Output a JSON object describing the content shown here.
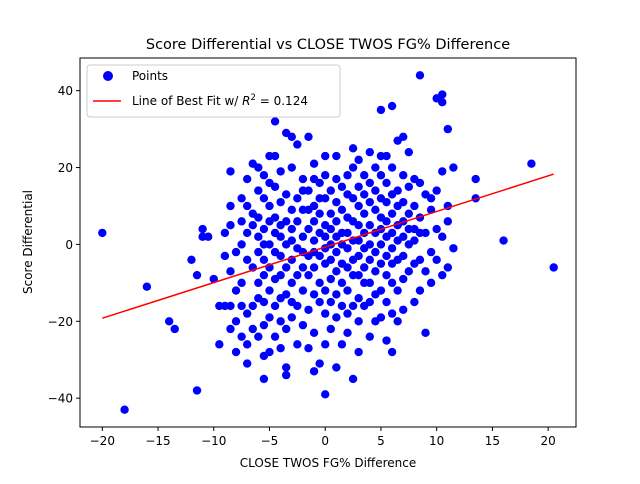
{
  "chart_data": {
    "type": "scatter",
    "title": "Score Differential vs CLOSE TWOS FG% Difference",
    "xlabel": "CLOSE TWOS FG% Difference",
    "ylabel": "Score Differential",
    "xlim": [
      -22.0,
      22.5
    ],
    "ylim": [
      -47.5,
      48.5
    ],
    "xticks": [
      -20,
      -15,
      -10,
      -5,
      0,
      5,
      10,
      15,
      20
    ],
    "yticks": [
      -40,
      -20,
      0,
      20,
      40
    ],
    "grid": false,
    "legend_position": "top-left",
    "legend": {
      "points_label": "Points",
      "fit_label_prefix": "Line of Best Fit w/ ",
      "fit_label_r2": "R",
      "fit_label_suffix": " = 0.124"
    },
    "fit_line": {
      "x": [
        -20,
        20.5
      ],
      "y": [
        -19.2,
        18.3
      ],
      "color": "#ff0000",
      "r_squared": 0.124
    },
    "point_color": "#0000ff",
    "series": [
      {
        "name": "Points",
        "points": [
          [
            -20,
            3
          ],
          [
            -18,
            -43
          ],
          [
            -16,
            -11
          ],
          [
            -14,
            -20
          ],
          [
            -13.5,
            -22
          ],
          [
            -12,
            -4
          ],
          [
            -11.5,
            -38
          ],
          [
            -11.5,
            -8
          ],
          [
            -11,
            2
          ],
          [
            -11,
            4
          ],
          [
            -10.5,
            2
          ],
          [
            -10,
            -9
          ],
          [
            -9.5,
            -16
          ],
          [
            -9.5,
            -26
          ],
          [
            -9,
            -16
          ],
          [
            -9,
            -3
          ],
          [
            -9,
            3
          ],
          [
            -8.5,
            -22
          ],
          [
            -8.5,
            -16
          ],
          [
            -8.5,
            -7
          ],
          [
            -8.5,
            5
          ],
          [
            -8.5,
            10
          ],
          [
            -8.5,
            19
          ],
          [
            -8,
            -28
          ],
          [
            -8,
            -20
          ],
          [
            -8,
            -12
          ],
          [
            -8,
            -2
          ],
          [
            -7.5,
            -24
          ],
          [
            -7.5,
            -16
          ],
          [
            -7.5,
            -10
          ],
          [
            -7.5,
            0
          ],
          [
            -7.5,
            6
          ],
          [
            -7.5,
            12
          ],
          [
            -7,
            -31
          ],
          [
            -7,
            -26
          ],
          [
            -7,
            -18
          ],
          [
            -7,
            -4
          ],
          [
            -7,
            3
          ],
          [
            -7,
            10
          ],
          [
            -7,
            17
          ],
          [
            -6.5,
            -22
          ],
          [
            -6.5,
            -16
          ],
          [
            -6.5,
            -6
          ],
          [
            -6.5,
            5
          ],
          [
            -6.5,
            8
          ],
          [
            -6.5,
            21
          ],
          [
            -6,
            -24
          ],
          [
            -6,
            -14
          ],
          [
            -6,
            -10
          ],
          [
            -6,
            -2
          ],
          [
            -6,
            2
          ],
          [
            -6,
            7
          ],
          [
            -6,
            14
          ],
          [
            -6,
            20
          ],
          [
            -5.5,
            -35
          ],
          [
            -5.5,
            -29
          ],
          [
            -5.5,
            -21
          ],
          [
            -5.5,
            -15
          ],
          [
            -5.5,
            -8
          ],
          [
            -5.5,
            -4
          ],
          [
            -5.5,
            0
          ],
          [
            -5.5,
            4
          ],
          [
            -5.5,
            12
          ],
          [
            -5.5,
            18
          ],
          [
            -5,
            -28
          ],
          [
            -5,
            -19
          ],
          [
            -5,
            -12
          ],
          [
            -5,
            -6
          ],
          [
            -5,
            0
          ],
          [
            -5,
            6
          ],
          [
            -5,
            10
          ],
          [
            -5,
            16
          ],
          [
            -5,
            23
          ],
          [
            -4.5,
            -24
          ],
          [
            -4.5,
            -16
          ],
          [
            -4.5,
            -9
          ],
          [
            -4.5,
            -2
          ],
          [
            -4.5,
            3
          ],
          [
            -4.5,
            7
          ],
          [
            -4.5,
            15
          ],
          [
            -4.5,
            23
          ],
          [
            -4.5,
            32
          ],
          [
            -4,
            -27
          ],
          [
            -4,
            -20
          ],
          [
            -4,
            -14
          ],
          [
            -4,
            -8
          ],
          [
            -4,
            -3
          ],
          [
            -4,
            2
          ],
          [
            -4,
            5
          ],
          [
            -4,
            11
          ],
          [
            -4,
            19
          ],
          [
            -3.5,
            -34
          ],
          [
            -3.5,
            -32
          ],
          [
            -3.5,
            -22
          ],
          [
            -3.5,
            -13
          ],
          [
            -3.5,
            -6
          ],
          [
            -3.5,
            0
          ],
          [
            -3.5,
            6
          ],
          [
            -3.5,
            13
          ],
          [
            -3.5,
            29
          ],
          [
            -3,
            -19
          ],
          [
            -3,
            -15
          ],
          [
            -3,
            -10
          ],
          [
            -3,
            -4
          ],
          [
            -3,
            1
          ],
          [
            -3,
            4
          ],
          [
            -3,
            9
          ],
          [
            -3,
            20
          ],
          [
            -3,
            28
          ],
          [
            -2.5,
            -26
          ],
          [
            -2.5,
            -16
          ],
          [
            -2.5,
            -8
          ],
          [
            -2.5,
            -1
          ],
          [
            -2.5,
            6
          ],
          [
            -2.5,
            12
          ],
          [
            -2.5,
            26
          ],
          [
            -2,
            -21
          ],
          [
            -2,
            -12
          ],
          [
            -2,
            -6
          ],
          [
            -2,
            -2
          ],
          [
            -2,
            2
          ],
          [
            -2,
            9
          ],
          [
            -2,
            14
          ],
          [
            -2,
            17
          ],
          [
            -1.5,
            -27
          ],
          [
            -1.5,
            -17
          ],
          [
            -1.5,
            -8
          ],
          [
            -1.5,
            -3
          ],
          [
            -1.5,
            4
          ],
          [
            -1.5,
            9
          ],
          [
            -1.5,
            14
          ],
          [
            -1.5,
            28
          ],
          [
            -1,
            -33
          ],
          [
            -1,
            -23
          ],
          [
            -1,
            -13
          ],
          [
            -1,
            -6
          ],
          [
            -1,
            -2
          ],
          [
            -1,
            1
          ],
          [
            -1,
            6
          ],
          [
            -1,
            10
          ],
          [
            -1,
            17
          ],
          [
            -1,
            21
          ],
          [
            -0.5,
            -31
          ],
          [
            -0.5,
            -15
          ],
          [
            -0.5,
            -10
          ],
          [
            -0.5,
            -3
          ],
          [
            -0.5,
            3
          ],
          [
            -0.5,
            8
          ],
          [
            -0.5,
            12
          ],
          [
            -0.5,
            16
          ],
          [
            0,
            -39
          ],
          [
            0,
            -26
          ],
          [
            0,
            -18
          ],
          [
            0,
            -12
          ],
          [
            0,
            -5
          ],
          [
            0,
            -1
          ],
          [
            0,
            2
          ],
          [
            0,
            5
          ],
          [
            0,
            12
          ],
          [
            0,
            18
          ],
          [
            0,
            23
          ],
          [
            0.5,
            -22
          ],
          [
            0.5,
            -15
          ],
          [
            0.5,
            -9
          ],
          [
            0.5,
            -4
          ],
          [
            0.5,
            0
          ],
          [
            0.5,
            4
          ],
          [
            0.5,
            8
          ],
          [
            0.5,
            14
          ],
          [
            1,
            -32
          ],
          [
            1,
            -19
          ],
          [
            1,
            -13
          ],
          [
            1,
            -7
          ],
          [
            1,
            -2
          ],
          [
            1,
            2
          ],
          [
            1,
            6
          ],
          [
            1,
            11
          ],
          [
            1,
            17
          ],
          [
            1,
            23
          ],
          [
            1.5,
            -26
          ],
          [
            1.5,
            -16
          ],
          [
            1.5,
            -10
          ],
          [
            1.5,
            -5
          ],
          [
            1.5,
            0
          ],
          [
            1.5,
            3
          ],
          [
            1.5,
            9
          ],
          [
            1.5,
            15
          ],
          [
            2,
            -23
          ],
          [
            2,
            -18
          ],
          [
            2,
            -12
          ],
          [
            2,
            -6
          ],
          [
            2,
            -1
          ],
          [
            2,
            3
          ],
          [
            2,
            7
          ],
          [
            2,
            13
          ],
          [
            2,
            18
          ],
          [
            2.5,
            -35
          ],
          [
            2.5,
            -16
          ],
          [
            2.5,
            -8
          ],
          [
            2.5,
            -4
          ],
          [
            2.5,
            1
          ],
          [
            2.5,
            6
          ],
          [
            2.5,
            12
          ],
          [
            2.5,
            20
          ],
          [
            2.5,
            25
          ],
          [
            3,
            -28
          ],
          [
            3,
            -20
          ],
          [
            3,
            -14
          ],
          [
            3,
            -8
          ],
          [
            3,
            -3
          ],
          [
            3,
            1
          ],
          [
            3,
            5
          ],
          [
            3,
            10
          ],
          [
            3,
            15
          ],
          [
            3,
            22
          ],
          [
            3.5,
            -16
          ],
          [
            3.5,
            -10
          ],
          [
            3.5,
            -6
          ],
          [
            3.5,
            -1
          ],
          [
            3.5,
            3
          ],
          [
            3.5,
            8
          ],
          [
            3.5,
            13
          ],
          [
            3.5,
            18
          ],
          [
            4,
            -24
          ],
          [
            4,
            -15
          ],
          [
            4,
            -10
          ],
          [
            4,
            -4
          ],
          [
            4,
            0
          ],
          [
            4,
            5
          ],
          [
            4,
            11
          ],
          [
            4,
            16
          ],
          [
            4,
            24
          ],
          [
            4.5,
            -20
          ],
          [
            4.5,
            -13
          ],
          [
            4.5,
            -7
          ],
          [
            4.5,
            -2
          ],
          [
            4.5,
            3
          ],
          [
            4.5,
            9
          ],
          [
            4.5,
            14
          ],
          [
            4.5,
            20
          ],
          [
            5,
            -19
          ],
          [
            5,
            -12
          ],
          [
            5,
            -5
          ],
          [
            5,
            0
          ],
          [
            5,
            4
          ],
          [
            5,
            7
          ],
          [
            5,
            12
          ],
          [
            5,
            18
          ],
          [
            5,
            23
          ],
          [
            5,
            35
          ],
          [
            5.5,
            -25
          ],
          [
            5.5,
            -15
          ],
          [
            5.5,
            -8
          ],
          [
            5.5,
            -3
          ],
          [
            5.5,
            2
          ],
          [
            5.5,
            6
          ],
          [
            5.5,
            11
          ],
          [
            5.5,
            16
          ],
          [
            5.5,
            23
          ],
          [
            6,
            -28
          ],
          [
            6,
            -18
          ],
          [
            6,
            -10
          ],
          [
            6,
            -5
          ],
          [
            6,
            -1
          ],
          [
            6,
            3
          ],
          [
            6,
            8
          ],
          [
            6,
            13
          ],
          [
            6,
            20
          ],
          [
            6,
            36
          ],
          [
            6.5,
            -20
          ],
          [
            6.5,
            -12
          ],
          [
            6.5,
            -4
          ],
          [
            6.5,
            1
          ],
          [
            6.5,
            5
          ],
          [
            6.5,
            10
          ],
          [
            6.5,
            14
          ],
          [
            6.5,
            27
          ],
          [
            7,
            -17
          ],
          [
            7,
            -9
          ],
          [
            7,
            -3
          ],
          [
            7,
            2
          ],
          [
            7,
            6
          ],
          [
            7,
            11
          ],
          [
            7,
            18
          ],
          [
            7,
            28
          ],
          [
            7.5,
            -7
          ],
          [
            7.5,
            0
          ],
          [
            7.5,
            4
          ],
          [
            7.5,
            8
          ],
          [
            7.5,
            15
          ],
          [
            7.5,
            24
          ],
          [
            8,
            -15
          ],
          [
            8,
            -5
          ],
          [
            8,
            1
          ],
          [
            8,
            4
          ],
          [
            8,
            10
          ],
          [
            8,
            17
          ],
          [
            8.5,
            -12
          ],
          [
            8.5,
            -4
          ],
          [
            8.5,
            3
          ],
          [
            8.5,
            7
          ],
          [
            8.5,
            16
          ],
          [
            8.5,
            44
          ],
          [
            9,
            -23
          ],
          [
            9,
            -7
          ],
          [
            9,
            3
          ],
          [
            9,
            13
          ],
          [
            9.5,
            -10
          ],
          [
            9.5,
            -2
          ],
          [
            9.5,
            9
          ],
          [
            9.5,
            12
          ],
          [
            10,
            -4
          ],
          [
            10,
            4
          ],
          [
            10,
            14
          ],
          [
            10,
            38
          ],
          [
            10.5,
            -8
          ],
          [
            10.5,
            2
          ],
          [
            10.5,
            19
          ],
          [
            10.5,
            37
          ],
          [
            10.5,
            39
          ],
          [
            11,
            -6
          ],
          [
            11,
            6
          ],
          [
            11,
            10
          ],
          [
            11,
            30
          ],
          [
            11.5,
            -1
          ],
          [
            11.5,
            20
          ],
          [
            13.5,
            12
          ],
          [
            13.5,
            17
          ],
          [
            16,
            1
          ],
          [
            18.5,
            21
          ],
          [
            20.5,
            -6
          ]
        ]
      }
    ]
  }
}
